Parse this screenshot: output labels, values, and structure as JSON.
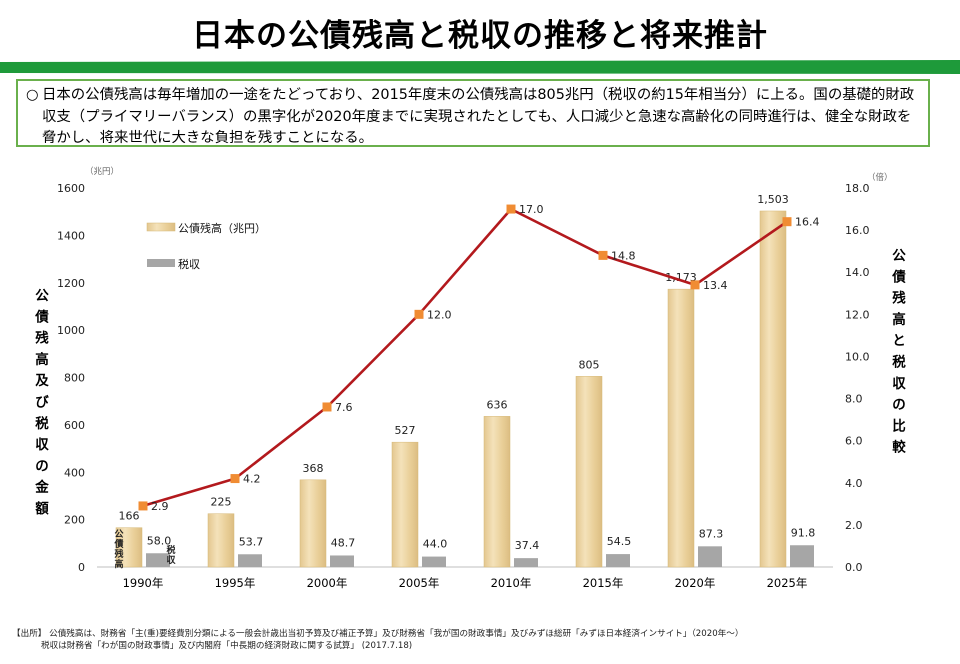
{
  "title": "日本の公債残高と税収の推移と将来推計",
  "summary": {
    "bullet": "○",
    "text": "日本の公債残高は毎年増加の一途をたどっており、2015年度末の公債残高は805兆円（税収の約15年相当分）に上る。国の基礎的財政収支（プライマリーバランス）の黒字化が2020年度までに実現されたとしても、人口減少と急速な高齢化の同時進行は、健全な財政を脅かし、将来世代に大きな負担を残すことになる。"
  },
  "source": {
    "line1": "【出所】 公債残高は、財務省「主(重)要経費別分類による一般会計歳出当初予算及び補正予算」及び財務省「我が国の財政事情」及びみずほ総研「みずほ日本経済インサイト」（2020年〜）",
    "line2": "税収は財務省「わが国の財政事情」及び内閣府「中長期の経済財政に関する試算」 (2017.7.18)"
  },
  "colors": {
    "band_green": "#1e9a3a",
    "box_border": "#6ab04c",
    "bar_debt": "#ecd4a0",
    "bar_debt_edge": "#d6b877",
    "bar_tax": "#a6a6a6",
    "ratio_line": "#b3191d",
    "ratio_marker": "#f08c33"
  },
  "chart_data": {
    "type": "bar",
    "categories": [
      "1990年",
      "1995年",
      "2000年",
      "2005年",
      "2010年",
      "2015年",
      "2020年",
      "2025年"
    ],
    "series": [
      {
        "name": "公債残高（兆円）",
        "axis": "left",
        "values": [
          166,
          225,
          368,
          527,
          636,
          805,
          1173,
          1503
        ],
        "labels": [
          "166",
          "225",
          "368",
          "527",
          "636",
          "805",
          "1,173",
          "1,503"
        ]
      },
      {
        "name": "税収",
        "axis": "left",
        "values": [
          58.0,
          53.7,
          48.7,
          44.0,
          37.4,
          54.5,
          87.3,
          91.8
        ],
        "labels": [
          "58.0",
          "53.7",
          "48.7",
          "44.0",
          "37.4",
          "54.5",
          "87.3",
          "91.8"
        ]
      },
      {
        "name": "公債残高と税収の比較",
        "axis": "right",
        "type": "line",
        "values": [
          2.9,
          4.2,
          7.6,
          12.0,
          17.0,
          14.8,
          13.4,
          16.4
        ],
        "labels": [
          "2.9",
          "4.2",
          "7.6",
          "12.0",
          "17.0",
          "14.8",
          "13.4",
          "16.4"
        ]
      }
    ],
    "left_axis": {
      "unit": "（兆円）",
      "label": "公債残高及び税収の金額",
      "ylim": [
        0,
        1600
      ],
      "ticks": [
        "0",
        "200",
        "400",
        "600",
        "800",
        "1000",
        "1200",
        "1400",
        "1600"
      ]
    },
    "right_axis": {
      "unit": "（倍）",
      "label": "公債残高と税収の比較",
      "ylim": [
        0,
        18
      ],
      "ticks": [
        "0.0",
        "2.0",
        "4.0",
        "6.0",
        "8.0",
        "10.0",
        "12.0",
        "14.0",
        "16.0",
        "18.0"
      ]
    },
    "legend": {
      "placement": "top-left",
      "items": [
        "公債残高（兆円）",
        "税収"
      ]
    },
    "inline_labels": {
      "debt": "公債残高",
      "tax": "税収"
    }
  }
}
